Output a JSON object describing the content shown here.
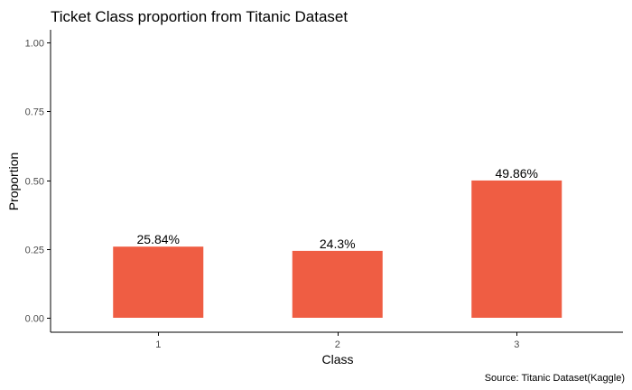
{
  "chart_data": {
    "type": "bar",
    "title": "Ticket Class proportion from Titanic Dataset",
    "xlabel": "Class",
    "ylabel": "Proportion",
    "caption": "Source: Titanic Dataset(Kaggle)",
    "categories": [
      "1",
      "2",
      "3"
    ],
    "values": [
      0.2584,
      0.243,
      0.4986
    ],
    "value_labels": [
      "25.84%",
      "24.3%",
      "49.86%"
    ],
    "ylim": [
      0,
      1
    ],
    "yticks": [
      0,
      0.25,
      0.5,
      0.75,
      1
    ],
    "ytick_labels": [
      "0.00",
      "0.25",
      "0.50",
      "0.75",
      "1.00"
    ],
    "grid": false,
    "bar_color": "#EF5D43"
  }
}
